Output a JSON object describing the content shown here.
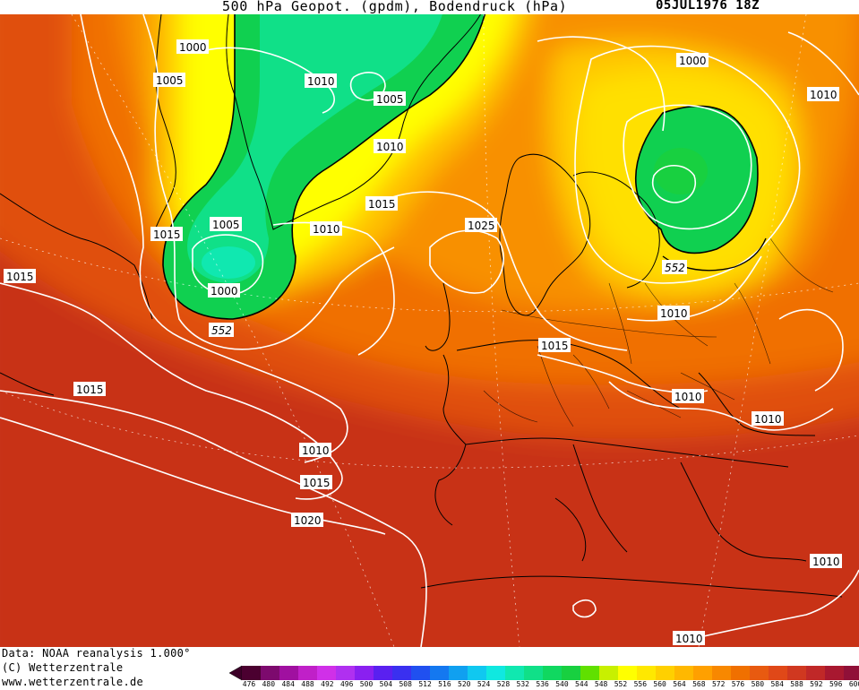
{
  "header": {
    "title": "500 hPa Geopot. (gpdm), Bodendruck (hPa)",
    "date": "05JUL1976 18Z"
  },
  "footer": {
    "credit_line1": "Data: NOAA reanalysis 1.000°",
    "credit_line2": "(C) Wetterzentrale",
    "credit_line3": "www.wetterzentrale.de"
  },
  "colorbar": {
    "values": [
      "476",
      "480",
      "484",
      "488",
      "492",
      "496",
      "500",
      "504",
      "508",
      "512",
      "516",
      "520",
      "524",
      "528",
      "532",
      "536",
      "540",
      "544",
      "548",
      "552",
      "556",
      "560",
      "564",
      "568",
      "572",
      "576",
      "580",
      "584",
      "588",
      "592",
      "596",
      "600"
    ],
    "colors": [
      "#4b0030",
      "#7d0a6e",
      "#a010a0",
      "#c020c8",
      "#d030e8",
      "#b030f0",
      "#8a20f0",
      "#5a20f0",
      "#3a30f0",
      "#2050f0",
      "#1478f0",
      "#10a0f0",
      "#10c8f0",
      "#10e8e0",
      "#10e8b0",
      "#10e088",
      "#10d860",
      "#18d040",
      "#60e000",
      "#c8f000",
      "#ffff00",
      "#ffe800",
      "#ffd000",
      "#ffb800",
      "#ffa000",
      "#f88800",
      "#f07000",
      "#e85a10",
      "#e04818",
      "#d03820",
      "#c02828",
      "#a81830",
      "#901038",
      "#e000a0"
    ],
    "low_arrow_color": "#3c0028",
    "high_arrow_color": "#e000a0"
  },
  "map": {
    "pressure_labels": [
      {
        "text": "1000"
      },
      {
        "text": "1005"
      },
      {
        "text": "1010"
      },
      {
        "text": "1005"
      },
      {
        "text": "1010"
      },
      {
        "text": "1015"
      },
      {
        "text": "1015"
      },
      {
        "text": "1005"
      },
      {
        "text": "1010"
      },
      {
        "text": "1000"
      },
      {
        "text": "552"
      },
      {
        "text": "1015"
      },
      {
        "text": "1025"
      },
      {
        "text": "1000"
      },
      {
        "text": "1010"
      },
      {
        "text": "552"
      },
      {
        "text": "1010"
      },
      {
        "text": "1015"
      },
      {
        "text": "1015"
      },
      {
        "text": "1010"
      },
      {
        "text": "1010"
      },
      {
        "text": "1010"
      },
      {
        "text": "1015"
      },
      {
        "text": "1020"
      },
      {
        "text": "1010"
      },
      {
        "text": "1010"
      }
    ]
  }
}
